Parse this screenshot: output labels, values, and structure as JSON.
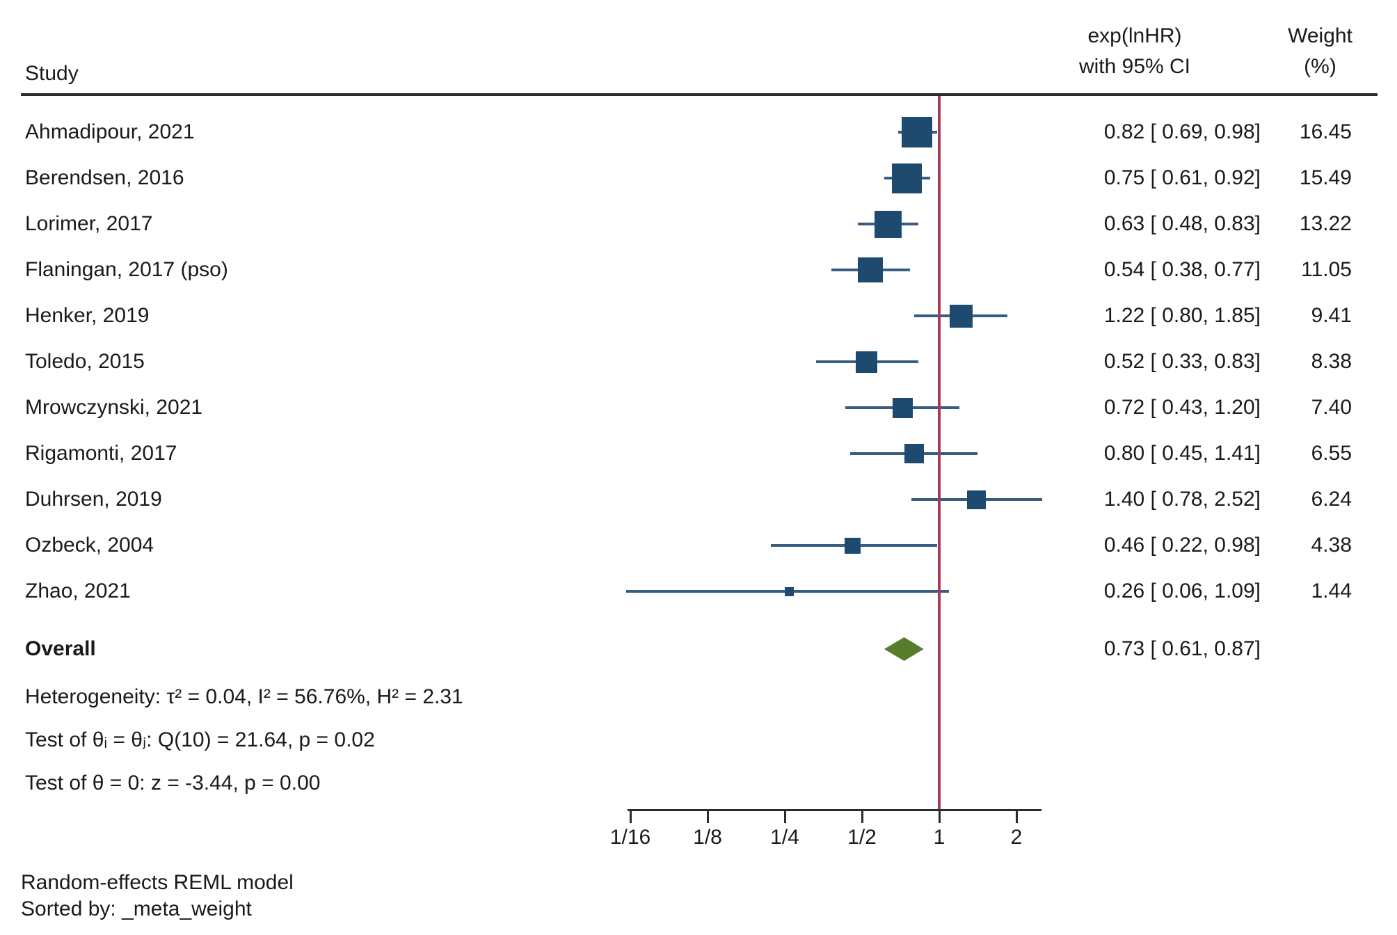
{
  "header": {
    "study_col": "Study",
    "effect_col_line1": "exp(lnHR)",
    "effect_col_line2": "with 95% CI",
    "weight_col_line1": "Weight",
    "weight_col_line2": "(%)"
  },
  "chart_data": {
    "type": "forest",
    "x_scale": "log2",
    "reference_value": 1,
    "studies": [
      {
        "label": "Ahmadipour, 2021",
        "effect": 0.82,
        "ci_low": 0.69,
        "ci_high": 0.98,
        "effect_text": "0.82 [ 0.69,  0.98]",
        "weight": 16.45,
        "weight_text": "16.45"
      },
      {
        "label": "Berendsen, 2016",
        "effect": 0.75,
        "ci_low": 0.61,
        "ci_high": 0.92,
        "effect_text": "0.75 [ 0.61,  0.92]",
        "weight": 15.49,
        "weight_text": "15.49"
      },
      {
        "label": "Lorimer, 2017",
        "effect": 0.63,
        "ci_low": 0.48,
        "ci_high": 0.83,
        "effect_text": "0.63 [ 0.48,  0.83]",
        "weight": 13.22,
        "weight_text": "13.22"
      },
      {
        "label": "Flaningan, 2017 (pso)",
        "effect": 0.54,
        "ci_low": 0.38,
        "ci_high": 0.77,
        "effect_text": "0.54 [ 0.38,  0.77]",
        "weight": 11.05,
        "weight_text": "11.05"
      },
      {
        "label": "Henker, 2019",
        "effect": 1.22,
        "ci_low": 0.8,
        "ci_high": 1.85,
        "effect_text": "1.22 [ 0.80,  1.85]",
        "weight": 9.41,
        "weight_text": "9.41"
      },
      {
        "label": "Toledo, 2015",
        "effect": 0.52,
        "ci_low": 0.33,
        "ci_high": 0.83,
        "effect_text": "0.52 [ 0.33,  0.83]",
        "weight": 8.38,
        "weight_text": "8.38"
      },
      {
        "label": "Mrowczynski, 2021",
        "effect": 0.72,
        "ci_low": 0.43,
        "ci_high": 1.2,
        "effect_text": "0.72 [ 0.43,  1.20]",
        "weight": 7.4,
        "weight_text": "7.40"
      },
      {
        "label": "Rigamonti, 2017",
        "effect": 0.8,
        "ci_low": 0.45,
        "ci_high": 1.41,
        "effect_text": "0.80 [ 0.45,  1.41]",
        "weight": 6.55,
        "weight_text": "6.55"
      },
      {
        "label": "Duhrsen, 2019",
        "effect": 1.4,
        "ci_low": 0.78,
        "ci_high": 2.52,
        "effect_text": "1.40 [ 0.78,  2.52]",
        "weight": 6.24,
        "weight_text": "6.24"
      },
      {
        "label": "Ozbeck, 2004",
        "effect": 0.46,
        "ci_low": 0.22,
        "ci_high": 0.98,
        "effect_text": "0.46 [ 0.22,  0.98]",
        "weight": 4.38,
        "weight_text": "4.38"
      },
      {
        "label": "Zhao, 2021",
        "effect": 0.26,
        "ci_low": 0.06,
        "ci_high": 1.09,
        "effect_text": "0.26 [ 0.06,  1.09]",
        "weight": 1.44,
        "weight_text": "1.44"
      }
    ],
    "overall": {
      "label": "Overall",
      "effect": 0.73,
      "ci_low": 0.61,
      "ci_high": 0.87,
      "effect_text": "0.73 [ 0.61,  0.87]"
    },
    "stats": {
      "heterogeneity": "Heterogeneity: τ² = 0.04, I² = 56.76%, H² = 2.31",
      "test_theta_ij": "Test of θᵢ = θⱼ: Q(10) = 21.64, p = 0.02",
      "test_theta_zero": "Test of θ = 0: z = -3.44, p = 0.00"
    },
    "axis": {
      "ticks": [
        {
          "label": "1/16",
          "value": 0.0625
        },
        {
          "label": "1/8",
          "value": 0.125
        },
        {
          "label": "1/4",
          "value": 0.25
        },
        {
          "label": "1/2",
          "value": 0.5
        },
        {
          "label": "1",
          "value": 1
        },
        {
          "label": "2",
          "value": 2
        }
      ]
    },
    "colors": {
      "marker": "#1f4a70",
      "ci_line": "#375d82",
      "reference_line": "#a23a58",
      "diamond": "#567c2c",
      "axis": "#2b2b2b"
    }
  },
  "footer": {
    "line1": "Random-effects REML model",
    "line2": "Sorted by: _meta_weight"
  }
}
